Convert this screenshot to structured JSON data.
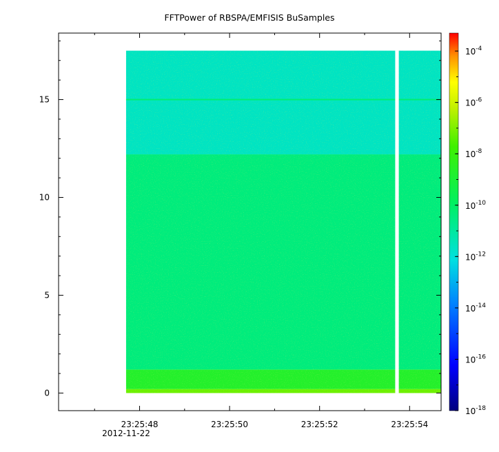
{
  "chart_data": {
    "type": "heatmap",
    "title": "FFTPower of RBSPA/EMFISIS  BuSamples",
    "xlabel": "",
    "ylabel": "",
    "x_tick_labels": [
      "23:25:48",
      "23:25:50",
      "23:25:52",
      "23:25:54"
    ],
    "x_tick_values_s": [
      48,
      50,
      52,
      54
    ],
    "x_date_label": "2012-11-22",
    "xlim_s": [
      46.2,
      54.7
    ],
    "x_data_range_s": [
      47.7,
      54.7
    ],
    "x_gap_s": [
      53.68,
      53.76
    ],
    "y_tick_labels": [
      "0",
      "5",
      "10",
      "15"
    ],
    "y_tick_values": [
      0,
      5,
      10,
      15
    ],
    "ylim": [
      -0.9,
      18.4
    ],
    "y_data_range": [
      0,
      17.5
    ],
    "colorbar": {
      "scale": "log",
      "range_exponents": [
        -18,
        -3.3
      ],
      "tick_exponents": [
        -4,
        -6,
        -8,
        -10,
        -12,
        -14,
        -16,
        -18
      ],
      "tick_base": "10"
    },
    "spectrum_bands": [
      {
        "y_from": 12.2,
        "y_to": 17.5,
        "log_power": -11.6
      },
      {
        "y_from": 1.2,
        "y_to": 12.2,
        "log_power": -10.4
      },
      {
        "y_from": 0.2,
        "y_to": 1.2,
        "log_power": -8.7
      },
      {
        "y_from": 0.0,
        "y_to": 0.2,
        "log_power": -7.2
      }
    ],
    "line_feature": {
      "y": 15.0,
      "log_power": -10.2
    }
  }
}
